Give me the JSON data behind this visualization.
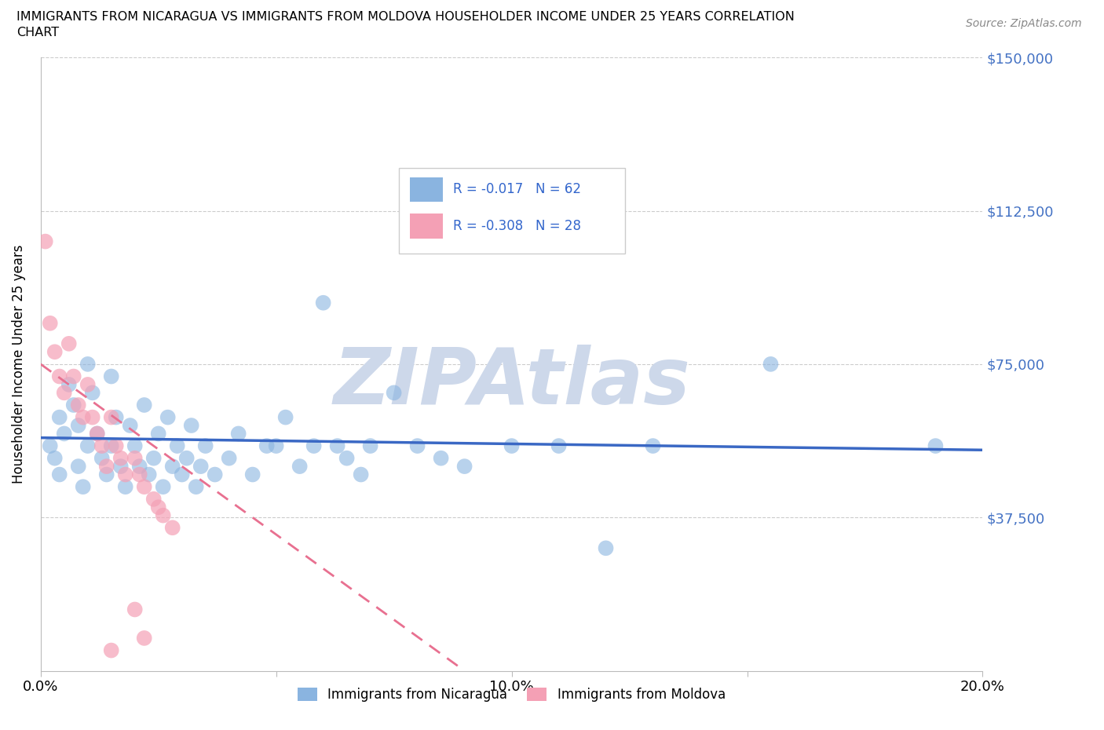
{
  "title_line1": "IMMIGRANTS FROM NICARAGUA VS IMMIGRANTS FROM MOLDOVA HOUSEHOLDER INCOME UNDER 25 YEARS CORRELATION",
  "title_line2": "CHART",
  "source": "Source: ZipAtlas.com",
  "ylabel": "Householder Income Under 25 years",
  "xlim": [
    0,
    0.2
  ],
  "ylim": [
    0,
    150000
  ],
  "yticks": [
    0,
    37500,
    75000,
    112500,
    150000
  ],
  "ytick_labels": [
    "",
    "$37,500",
    "$75,000",
    "$112,500",
    "$150,000"
  ],
  "xticks": [
    0.0,
    0.05,
    0.1,
    0.15,
    0.2
  ],
  "xtick_labels": [
    "0.0%",
    "",
    "10.0%",
    "",
    "20.0%"
  ],
  "nicaragua_color": "#8ab4e0",
  "moldova_color": "#f4a0b5",
  "nicaragua_R": -0.017,
  "nicaragua_N": 62,
  "moldova_R": -0.308,
  "moldova_N": 28,
  "nicaragua_line_color": "#3a68c4",
  "moldova_line_color": "#e87090",
  "watermark": "ZIPAtlas",
  "watermark_color": "#cdd8ea",
  "legend_label_nicaragua": "Immigrants from Nicaragua",
  "legend_label_moldova": "Immigrants from Moldova",
  "nicaragua_scatter_x": [
    0.002,
    0.003,
    0.004,
    0.004,
    0.005,
    0.006,
    0.007,
    0.008,
    0.008,
    0.009,
    0.01,
    0.01,
    0.011,
    0.012,
    0.013,
    0.014,
    0.015,
    0.015,
    0.016,
    0.017,
    0.018,
    0.019,
    0.02,
    0.021,
    0.022,
    0.023,
    0.024,
    0.025,
    0.026,
    0.027,
    0.028,
    0.029,
    0.03,
    0.031,
    0.032,
    0.033,
    0.034,
    0.035,
    0.037,
    0.04,
    0.042,
    0.045,
    0.048,
    0.05,
    0.052,
    0.055,
    0.058,
    0.06,
    0.063,
    0.065,
    0.068,
    0.07,
    0.075,
    0.08,
    0.085,
    0.09,
    0.1,
    0.11,
    0.12,
    0.13,
    0.155,
    0.19
  ],
  "nicaragua_scatter_y": [
    55000,
    52000,
    48000,
    62000,
    58000,
    70000,
    65000,
    60000,
    50000,
    45000,
    75000,
    55000,
    68000,
    58000,
    52000,
    48000,
    55000,
    72000,
    62000,
    50000,
    45000,
    60000,
    55000,
    50000,
    65000,
    48000,
    52000,
    58000,
    45000,
    62000,
    50000,
    55000,
    48000,
    52000,
    60000,
    45000,
    50000,
    55000,
    48000,
    52000,
    58000,
    48000,
    55000,
    55000,
    62000,
    50000,
    55000,
    90000,
    55000,
    52000,
    48000,
    55000,
    68000,
    55000,
    52000,
    50000,
    55000,
    55000,
    30000,
    55000,
    75000,
    55000
  ],
  "moldova_scatter_x": [
    0.001,
    0.002,
    0.003,
    0.004,
    0.005,
    0.006,
    0.007,
    0.008,
    0.009,
    0.01,
    0.011,
    0.012,
    0.013,
    0.014,
    0.015,
    0.016,
    0.017,
    0.018,
    0.02,
    0.021,
    0.022,
    0.024,
    0.025,
    0.026,
    0.028,
    0.015,
    0.02,
    0.022
  ],
  "moldova_scatter_y": [
    105000,
    85000,
    78000,
    72000,
    68000,
    80000,
    72000,
    65000,
    62000,
    70000,
    62000,
    58000,
    55000,
    50000,
    62000,
    55000,
    52000,
    48000,
    52000,
    48000,
    45000,
    42000,
    40000,
    38000,
    35000,
    5000,
    15000,
    8000
  ],
  "nicaragua_line_x": [
    0.0,
    0.2
  ],
  "nicaragua_line_y": [
    57000,
    54000
  ],
  "moldova_line_x": [
    0.0,
    0.09
  ],
  "moldova_line_y": [
    75000,
    0
  ]
}
